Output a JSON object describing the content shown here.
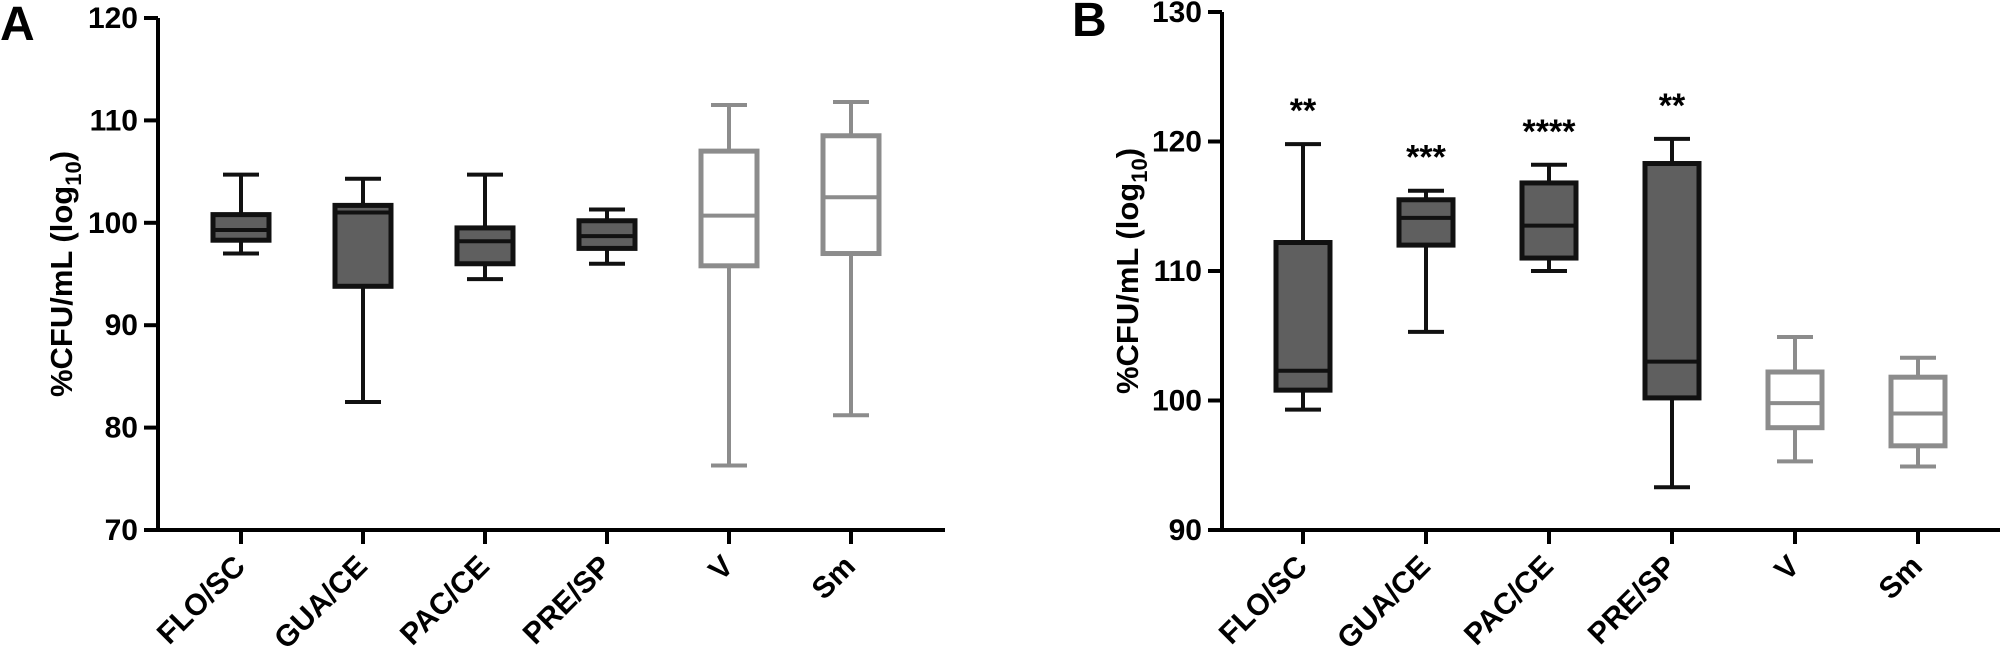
{
  "colors": {
    "dark_fill": "#5f5f5f",
    "dark_stroke": "#111111",
    "light_stroke": "#8c8c8c",
    "light_fill": "#ffffff",
    "axis": "#000000"
  },
  "chart_data": [
    {
      "type": "box",
      "panel": "A",
      "title": "",
      "xlabel": "",
      "ylabel": {
        "main": "%CFU/mL (log",
        "sub": "10",
        "close": ")"
      },
      "ylim": [
        70,
        120
      ],
      "yticks": [
        70,
        80,
        90,
        100,
        110,
        120
      ],
      "categories": [
        "FLO/SC",
        "GUA/CE",
        "PAC/CE",
        "PRE/SP",
        "V",
        "Sm"
      ],
      "boxes": [
        {
          "category": "FLO/SC",
          "min": 97.0,
          "q1": 98.3,
          "median": 99.3,
          "q3": 100.8,
          "max": 104.7,
          "style": "dark",
          "annotation": ""
        },
        {
          "category": "GUA/CE",
          "min": 82.5,
          "q1": 93.8,
          "median": 101.0,
          "q3": 101.7,
          "max": 104.3,
          "style": "dark",
          "annotation": ""
        },
        {
          "category": "PAC/CE",
          "min": 94.5,
          "q1": 96.0,
          "median": 98.2,
          "q3": 99.5,
          "max": 104.7,
          "style": "dark",
          "annotation": ""
        },
        {
          "category": "PRE/SP",
          "min": 96.0,
          "q1": 97.5,
          "median": 98.7,
          "q3": 100.2,
          "max": 101.3,
          "style": "dark",
          "annotation": ""
        },
        {
          "category": "V",
          "min": 76.3,
          "q1": 95.8,
          "median": 100.7,
          "q3": 107.0,
          "max": 111.5,
          "style": "light",
          "annotation": ""
        },
        {
          "category": "Sm",
          "min": 81.2,
          "q1": 97.0,
          "median": 102.5,
          "q3": 108.5,
          "max": 111.8,
          "style": "light",
          "annotation": ""
        }
      ]
    },
    {
      "type": "box",
      "panel": "B",
      "title": "",
      "xlabel": "",
      "ylabel": {
        "main": "%CFU/mL (log",
        "sub": "10",
        "close": ")"
      },
      "ylim": [
        90,
        130
      ],
      "yticks": [
        90,
        100,
        110,
        120,
        130
      ],
      "categories": [
        "FLO/SC",
        "GUA/CE",
        "PAC/CE",
        "PRE/SP",
        "V",
        "Sm"
      ],
      "boxes": [
        {
          "category": "FLO/SC",
          "min": 99.3,
          "q1": 100.8,
          "median": 102.3,
          "q3": 112.2,
          "max": 119.8,
          "style": "dark",
          "annotation": "**"
        },
        {
          "category": "GUA/CE",
          "min": 105.3,
          "q1": 112.0,
          "median": 114.1,
          "q3": 115.5,
          "max": 116.2,
          "style": "dark",
          "annotation": "***"
        },
        {
          "category": "PAC/CE",
          "min": 110.0,
          "q1": 111.0,
          "median": 113.5,
          "q3": 116.8,
          "max": 118.2,
          "style": "dark",
          "annotation": "****"
        },
        {
          "category": "PRE/SP",
          "min": 93.3,
          "q1": 100.2,
          "median": 103.0,
          "q3": 118.3,
          "max": 120.2,
          "style": "dark",
          "annotation": "**"
        },
        {
          "category": "V",
          "min": 95.3,
          "q1": 97.9,
          "median": 99.8,
          "q3": 102.2,
          "max": 104.9,
          "style": "light",
          "annotation": ""
        },
        {
          "category": "Sm",
          "min": 94.9,
          "q1": 96.5,
          "median": 99.0,
          "q3": 101.8,
          "max": 103.3,
          "style": "light",
          "annotation": ""
        }
      ]
    }
  ]
}
